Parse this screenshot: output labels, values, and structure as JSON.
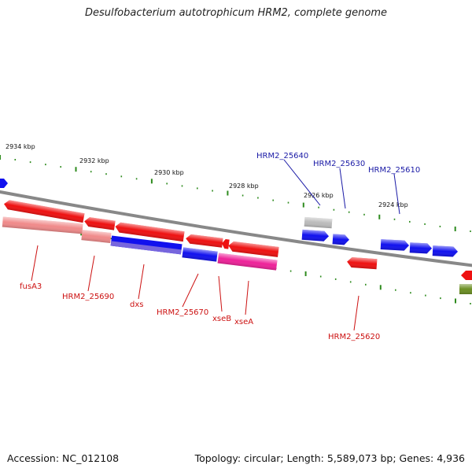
{
  "header": {
    "title": "Desulfobacterium autotrophicum HRM2, complete genome"
  },
  "footer": {
    "accession": "Accession: NC_012108",
    "summary": "Topology: circular; Length: 5,589,073 bp; Genes: 4,936"
  },
  "colors": {
    "backbone": "#888888",
    "tick": "#2e8b1e",
    "label_red": "#cc1111",
    "label_blue": "#1a1aa6",
    "gene_red": "#ee1111",
    "gene_blue": "#1111ee",
    "gene_pink": "#f08a8a",
    "gene_magenta": "#ee2299",
    "gene_purple": "#7766dd",
    "gene_gray": "#bbbbbb",
    "gene_olive": "#6b8e23"
  },
  "ruler": {
    "labels": [
      "2934 kbp",
      "2932 kbp",
      "2930 kbp",
      "2928 kbp",
      "2926 kbp",
      "2924 kbp"
    ]
  },
  "gene_labels": {
    "above": [
      "HRM2_25640",
      "HRM2_25630",
      "HRM2_25610"
    ],
    "below": [
      "fusA3",
      "HRM2_25690",
      "dxs",
      "HRM2_25670",
      "xseB",
      "xseA",
      "HRM2_25620"
    ]
  }
}
